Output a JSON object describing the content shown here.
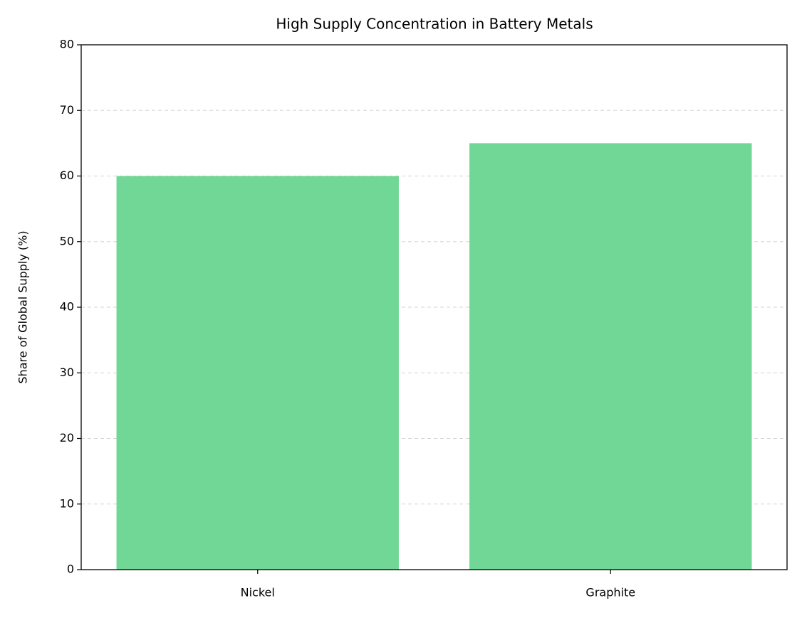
{
  "chart_data": {
    "type": "bar",
    "title": "High Supply Concentration in Battery Metals",
    "y_label": "Share of Global Supply (%)",
    "categories": [
      "Nickel",
      "Graphite"
    ],
    "values": [
      60,
      65
    ],
    "color": "#71d796",
    "ylim": [
      0,
      80
    ],
    "yticks": [
      0,
      10,
      20,
      30,
      40,
      50,
      60,
      70,
      80
    ],
    "grid": true
  }
}
